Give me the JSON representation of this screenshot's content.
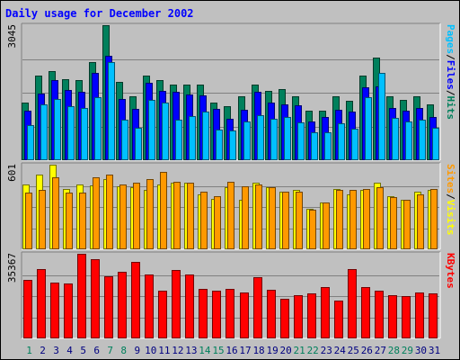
{
  "chart_data": [
    {
      "type": "bar",
      "title": "Daily usage for December 2002",
      "categories": [
        "1",
        "2",
        "3",
        "4",
        "5",
        "6",
        "7",
        "8",
        "9",
        "10",
        "11",
        "12",
        "13",
        "14",
        "15",
        "16",
        "17",
        "18",
        "19",
        "20",
        "21",
        "22",
        "23",
        "24",
        "25",
        "26",
        "27",
        "28",
        "29",
        "30",
        "31"
      ],
      "weekend_categories": [
        "1",
        "7",
        "8",
        "14",
        "15",
        "21",
        "22",
        "28",
        "29"
      ],
      "ylim": [
        0,
        3045
      ],
      "max_label": "3045",
      "series": [
        {
          "name": "Hits",
          "color": "#00805c",
          "values": [
            1300,
            1900,
            2000,
            1830,
            1800,
            2210,
            3045,
            1770,
            1440,
            1900,
            1800,
            1700,
            1700,
            1700,
            1290,
            1210,
            1450,
            1700,
            1570,
            1610,
            1450,
            1120,
            1120,
            1450,
            1330,
            1900,
            2310,
            1450,
            1370,
            1450,
            1250
          ]
        },
        {
          "name": "Files",
          "color": "#0000ff",
          "values": [
            1110,
            1510,
            1800,
            1590,
            1540,
            1960,
            2360,
            1390,
            1150,
            1740,
            1570,
            1540,
            1480,
            1460,
            1150,
            930,
            1130,
            1540,
            1300,
            1250,
            1230,
            870,
            980,
            1130,
            1090,
            1640,
            1670,
            1180,
            1110,
            1180,
            970
          ]
        },
        {
          "name": "Pages",
          "color": "#00c0ff",
          "values": [
            800,
            1260,
            1390,
            1220,
            1170,
            1430,
            2220,
            920,
            740,
            1360,
            1300,
            910,
            1000,
            1090,
            700,
            660,
            880,
            1010,
            930,
            970,
            850,
            630,
            620,
            830,
            720,
            1430,
            1960,
            950,
            880,
            920,
            730
          ]
        }
      ],
      "axis_label_segments": [
        "Pages",
        "/",
        "Files",
        "/",
        "Hits"
      ],
      "axis_label_colors": [
        "#00c0ff",
        "#000000",
        "#0000ff",
        "#000000",
        "#00805c"
      ]
    },
    {
      "type": "bar",
      "ylim": [
        0,
        601
      ],
      "max_label": "601",
      "series": [
        {
          "name": "Visits",
          "color": "#ffff00",
          "values": [
            460,
            530,
            601,
            430,
            460,
            455,
            500,
            450,
            440,
            420,
            460,
            470,
            470,
            390,
            360,
            440,
            350,
            470,
            440,
            410,
            420,
            290,
            330,
            430,
            390,
            420,
            470,
            380,
            350,
            410,
            420
          ]
        },
        {
          "name": "Sites",
          "color": "#ff9900",
          "values": [
            400,
            420,
            510,
            400,
            400,
            510,
            530,
            460,
            470,
            500,
            550,
            480,
            470,
            410,
            380,
            480,
            450,
            460,
            440,
            410,
            410,
            280,
            330,
            420,
            420,
            430,
            440,
            370,
            350,
            390,
            430
          ]
        }
      ],
      "axis_label_segments": [
        "Sites",
        "/",
        "Visits"
      ],
      "axis_label_colors": [
        "#ff9900",
        "#000000",
        "#ffff00"
      ]
    },
    {
      "type": "bar",
      "ylim": [
        0,
        35367
      ],
      "max_label": "35367",
      "series": [
        {
          "name": "KBytes",
          "color": "#ff0000",
          "values": [
            24400,
            29000,
            23500,
            23100,
            35367,
            33200,
            25900,
            27700,
            31800,
            26700,
            19800,
            28700,
            26800,
            20600,
            19800,
            20700,
            19100,
            25500,
            20300,
            16600,
            18000,
            18800,
            21400,
            15800,
            28900,
            21600,
            19800,
            18000,
            17500,
            19100,
            18700
          ]
        }
      ],
      "axis_label_segments": [
        "KBytes"
      ],
      "axis_label_colors": [
        "#ff0000"
      ]
    }
  ]
}
